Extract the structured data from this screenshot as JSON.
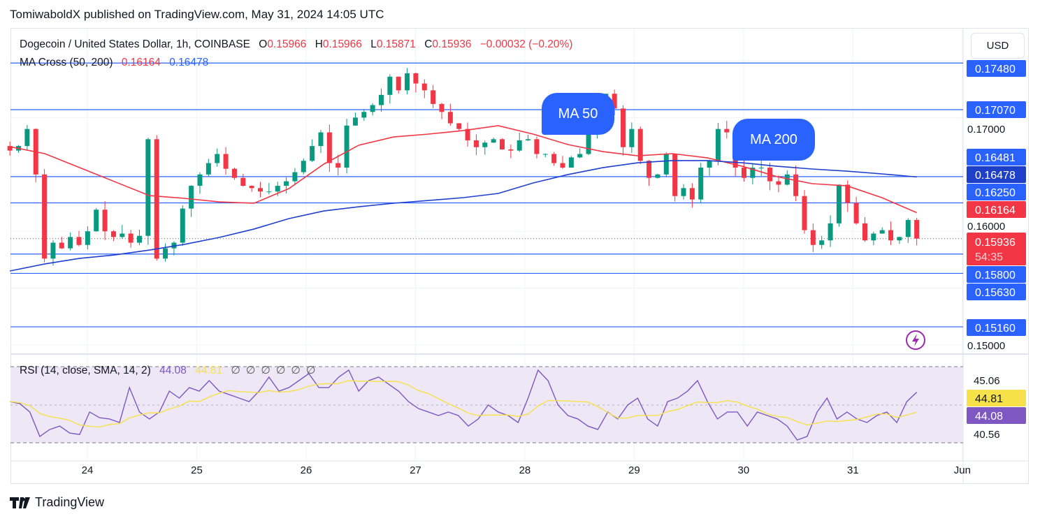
{
  "header": {
    "published": "TomiwaboldX published on TradingView.com, May 31, 2024 14:05 UTC"
  },
  "legend": {
    "symbol": "Dogecoin / United States Dollar, 1h, COINBASE",
    "o_label": "O",
    "o": "0.15966",
    "h_label": "H",
    "h": "0.15966",
    "l_label": "L",
    "l": "0.15871",
    "c_label": "C",
    "c": "0.15936",
    "change": "−0.00032 (−0.20%)"
  },
  "ma_legend": {
    "label": "MA Cross (50, 200)",
    "ma50": "0.16164",
    "ma200": "0.16478"
  },
  "currency": "USD",
  "annotations": {
    "ma50": "MA 50",
    "ma200": "MA 200"
  },
  "colors": {
    "up": "#089981",
    "down": "#f23645",
    "ma50": "#f23645",
    "ma200": "#1e3fd0",
    "hline": "#2962ff",
    "rsi": "#7e57c2",
    "rsi_sma": "#f7e14b",
    "rsi_band": "#ede7f6"
  },
  "price_axis": {
    "ticks": [
      "0.17000",
      "0.16000",
      "0.15000"
    ],
    "tick_values": [
      0.17,
      0.16,
      0.15
    ]
  },
  "price_labels": [
    {
      "text": "0.17480",
      "value": 0.1748,
      "color": "#2962ff"
    },
    {
      "text": "0.17070",
      "value": 0.1707,
      "color": "#2962ff"
    },
    {
      "text": "0.16481",
      "value": 0.16481,
      "color": "#2962ff"
    },
    {
      "text": "0.16478",
      "value": 0.16478,
      "color": "#1e40c8"
    },
    {
      "text": "0.16250",
      "value": 0.1625,
      "color": "#2962ff"
    },
    {
      "text": "0.16164",
      "value": 0.16164,
      "color": "#f23645"
    },
    {
      "text": "0.15800",
      "value": 0.158,
      "color": "#2962ff"
    },
    {
      "text": "0.15630",
      "value": 0.1563,
      "color": "#2962ff"
    },
    {
      "text": "0.15160",
      "value": 0.1516,
      "color": "#2962ff"
    }
  ],
  "last_price": {
    "text": "0.15936",
    "value": 0.15936,
    "countdown": "54:35"
  },
  "hlines": [
    0.1748,
    0.1707,
    0.16481,
    0.1625,
    0.158,
    0.1563,
    0.1516
  ],
  "time_axis": [
    {
      "label": "24",
      "day": 24
    },
    {
      "label": "25",
      "day": 25
    },
    {
      "label": "26",
      "day": 26
    },
    {
      "label": "27",
      "day": 27
    },
    {
      "label": "28",
      "day": 28
    },
    {
      "label": "29",
      "day": 29
    },
    {
      "label": "30",
      "day": 30
    },
    {
      "label": "31",
      "day": 31
    },
    {
      "label": "Jun",
      "day": 32
    }
  ],
  "rsi": {
    "legend": "RSI (14, close, SMA, 14, 2)",
    "value": "44.08",
    "sma": "44.81",
    "extras": [
      "∅",
      "∅",
      "∅",
      "∅",
      "∅",
      "∅"
    ],
    "axis": [
      {
        "text": "45.06",
        "value": 45.06
      },
      {
        "text": "40.56",
        "value": 40.56
      }
    ],
    "values": [
      43.28,
      43.11,
      42.4,
      40.33,
      40.92,
      41.21,
      40.62,
      40.5,
      42.4,
      41.92,
      41.81,
      41.51,
      44.47,
      42.4,
      41.81,
      42.4,
      44.17,
      43.58,
      44.47,
      44.17,
      45.06,
      44.17,
      43.88,
      43.58,
      43.28,
      44.17,
      45.36,
      44.17,
      44.47,
      45.06,
      45.65,
      44.47,
      44.47,
      45.36,
      45.95,
      44.17,
      45.06,
      45.36,
      44.76,
      44.17,
      43.28,
      42.69,
      42.4,
      42.1,
      42.4,
      42.1,
      41.21,
      41.81,
      43.0,
      42.4,
      42.1,
      41.51,
      43.58,
      45.95,
      45.06,
      43.0,
      42.1,
      41.81,
      41.21,
      40.92,
      42.4,
      41.81,
      43.0,
      43.58,
      41.81,
      41.21,
      43.28,
      43.58,
      44.17,
      45.06,
      43.28,
      41.81,
      42.4,
      42.4,
      41.21,
      42.4,
      42.1,
      41.81,
      41.21,
      40.03,
      40.33,
      42.4,
      43.58,
      41.81,
      42.4,
      41.81,
      41.51,
      42.1,
      42.4,
      41.51,
      43.28,
      44.08
    ]
  },
  "chart_data": {
    "type": "candlestick",
    "interval": "2h",
    "first": "2024-05-23 07:00",
    "last": "2024-05-31 14:00",
    "ylim": [
      0.1495,
      0.1775
    ],
    "closes": [
      0.1671,
      0.1675,
      0.169,
      0.165,
      0.1576,
      0.159,
      0.1585,
      0.1595,
      0.1588,
      0.16,
      0.1619,
      0.16,
      0.1595,
      0.1598,
      0.159,
      0.1596,
      0.1681,
      0.1576,
      0.1585,
      0.159,
      0.162,
      0.164,
      0.165,
      0.166,
      0.1668,
      0.1655,
      0.1647,
      0.164,
      0.1638,
      0.1635,
      0.1635,
      0.164,
      0.1644,
      0.1652,
      0.1662,
      0.1675,
      0.1687,
      0.166,
      0.1656,
      0.1693,
      0.17,
      0.1705,
      0.1711,
      0.172,
      0.1736,
      0.1724,
      0.1739,
      0.173,
      0.1724,
      0.1712,
      0.1705,
      0.1695,
      0.169,
      0.168,
      0.1674,
      0.1678,
      0.1681,
      0.1672,
      0.1671,
      0.168,
      0.1681,
      0.1668,
      0.1668,
      0.166,
      0.1656,
      0.1665,
      0.1668,
      0.1685,
      0.1696,
      0.1721,
      0.1708,
      0.1674,
      0.169,
      0.1662,
      0.1647,
      0.165,
      0.1668,
      0.1631,
      0.1638,
      0.1628,
      0.1656,
      0.1662,
      0.169,
      0.1687,
      0.1656,
      0.1647,
      0.1656,
      0.1656,
      0.1644,
      0.1641,
      0.165,
      0.1631,
      0.1601,
      0.1588,
      0.1592,
      0.1607,
      0.1641,
      0.1625,
      0.1607,
      0.1592,
      0.1598,
      0.1601,
      0.1592,
      0.1595,
      0.161,
      0.15936
    ],
    "ma50": [
      0.16744,
      0.16683,
      0.1656,
      0.16437,
      0.16314,
      0.1629,
      0.16259,
      0.16247,
      0.16376,
      0.16591,
      0.16757,
      0.1683,
      0.16855,
      0.16886,
      0.16929,
      0.16855,
      0.16763,
      0.16701,
      0.16664,
      0.16683,
      0.16646,
      0.16572,
      0.1648,
      0.16419,
      0.164,
      0.16296,
      0.16164
    ],
    "ma200": [
      0.15651,
      0.15713,
      0.15762,
      0.15792,
      0.15835,
      0.15885,
      0.15946,
      0.1602,
      0.16112,
      0.16179,
      0.16216,
      0.16247,
      0.16271,
      0.16296,
      0.16333,
      0.16425,
      0.16499,
      0.1656,
      0.16603,
      0.16622,
      0.16622,
      0.16603,
      0.16572,
      0.16548,
      0.16529,
      0.16505,
      0.16478
    ]
  },
  "footer": {
    "brand": "TradingView"
  }
}
